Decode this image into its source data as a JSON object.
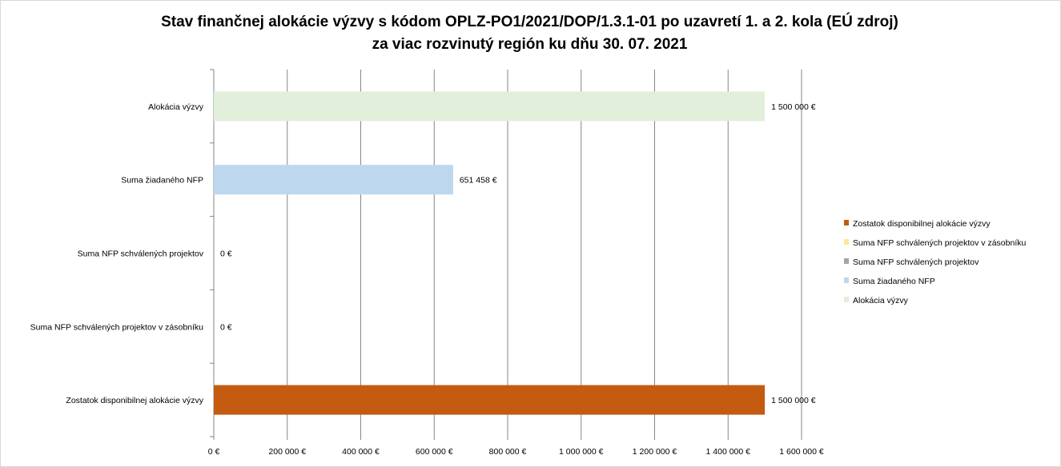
{
  "chart_data": {
    "type": "bar",
    "orientation": "horizontal",
    "title": "Stav finančnej alokácie výzvy s kódom OPLZ-PO1/2021/DOP/1.3.1-01 po uzavretí 1. a 2. kola (EÚ zdroj)",
    "subtitle": "za viac rozvinutý región ku dňu 30. 07. 2021",
    "categories": [
      "Alokácia výzvy",
      "Suma žiadaného NFP",
      "Suma NFP schválených projektov",
      "Suma NFP schválených projektov v zásobníku",
      "Zostatok disponibilnej alokácie výzvy"
    ],
    "values": [
      1500000,
      651458,
      0,
      0,
      1500000
    ],
    "data_labels": [
      "1 500 000 €",
      "651 458 €",
      "0 €",
      "0 €",
      "1 500 000 €"
    ],
    "colors": [
      "#e2efda",
      "#bdd7ee",
      "#a5a5a5",
      "#ffe699",
      "#c55a11"
    ],
    "xlim": [
      0,
      1600000
    ],
    "x_ticks": [
      0,
      200000,
      400000,
      600000,
      800000,
      1000000,
      1200000,
      1400000,
      1600000
    ],
    "x_tick_labels": [
      "0 €",
      "200 000 €",
      "400 000 €",
      "600 000 €",
      "800 000 €",
      "1 000 000 €",
      "1 200 000 €",
      "1 400 000 €",
      "1 600 000 €"
    ],
    "grid": true,
    "legend": {
      "position": "right",
      "entries": [
        {
          "label": "Zostatok disponibilnej alokácie výzvy",
          "color": "#c55a11"
        },
        {
          "label": "Suma NFP schválených projektov v zásobníku",
          "color": "#ffe699"
        },
        {
          "label": "Suma NFP schválených projektov",
          "color": "#a5a5a5"
        },
        {
          "label": "Suma žiadaného NFP",
          "color": "#bdd7ee"
        },
        {
          "label": "Alokácia výzvy",
          "color": "#e2efda"
        }
      ]
    },
    "xlabel": "",
    "ylabel": ""
  }
}
